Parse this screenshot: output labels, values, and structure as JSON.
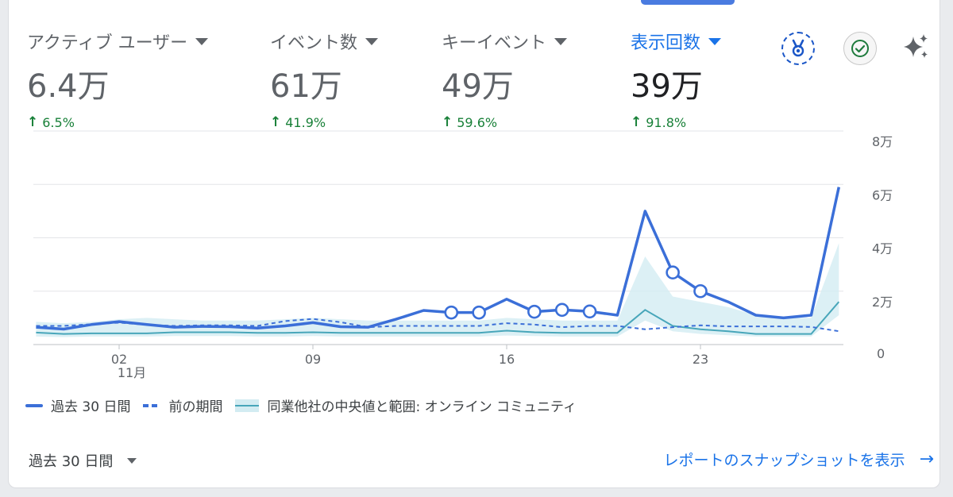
{
  "metrics": [
    {
      "label": "アクティブ ユーザー",
      "value": "6.4万",
      "change": "6.5%",
      "active": false
    },
    {
      "label": "イベント数",
      "value": "61万",
      "change": "41.9%",
      "active": false
    },
    {
      "label": "キーイベント",
      "value": "49万",
      "change": "59.6%",
      "active": false
    },
    {
      "label": "表示回数",
      "value": "39万",
      "change": "91.8%",
      "active": true
    }
  ],
  "icons": {
    "badge": "ribbon-badge-icon",
    "check": "check-circle-icon",
    "sparkle": "sparkle-icon"
  },
  "colors": {
    "accent": "#1a73e8",
    "current_series": "#3b6fd8",
    "benchmark": "#48a6ba",
    "benchmark_band": "#d3ecf2",
    "positive": "#188038"
  },
  "chart_data": {
    "type": "line",
    "y_ticks": [
      "8万",
      "6万",
      "4万",
      "2万",
      "0"
    ],
    "ylim": [
      0,
      80000
    ],
    "x_tick_labels": [
      {
        "day": 2,
        "label": "02",
        "sublabel": "11月"
      },
      {
        "day": 9,
        "label": "09",
        "sublabel": ""
      },
      {
        "day": 16,
        "label": "16",
        "sublabel": ""
      },
      {
        "day": 23,
        "label": "23",
        "sublabel": ""
      }
    ],
    "x_days": [
      -1,
      0,
      1,
      2,
      3,
      4,
      5,
      6,
      7,
      8,
      9,
      10,
      11,
      12,
      13,
      14,
      15,
      16,
      17,
      18,
      19,
      20,
      21,
      22,
      23,
      24,
      25,
      26,
      27,
      28
    ],
    "series": [
      {
        "name": "過去 30 日間",
        "style": "solid",
        "values": [
          6500,
          5800,
          7500,
          8600,
          7500,
          6500,
          6800,
          6700,
          6200,
          7000,
          8200,
          6700,
          6500,
          9500,
          12800,
          12000,
          12000,
          17000,
          12300,
          13000,
          12400,
          11000,
          50000,
          27000,
          20000,
          16000,
          11000,
          10000,
          11000,
          59000
        ],
        "anomaly_markers": [
          14,
          15,
          17,
          18,
          19,
          22,
          23
        ]
      },
      {
        "name": "前の期間",
        "style": "dashed",
        "values": [
          7000,
          7000,
          7600,
          8200,
          7400,
          7000,
          7200,
          7200,
          7000,
          8800,
          9600,
          8400,
          6500,
          7000,
          7000,
          7000,
          7000,
          8000,
          7500,
          6500,
          7000,
          7000,
          5700,
          6500,
          7200,
          6800,
          6800,
          6800,
          6600,
          5000
        ]
      },
      {
        "name": "同業他社の中央値と範囲: オンライン コミュニティ",
        "style": "band",
        "values": [
          4500,
          4000,
          4200,
          4200,
          4200,
          4600,
          4600,
          4600,
          4400,
          4400,
          4600,
          4400,
          4400,
          4400,
          4400,
          4400,
          4400,
          5200,
          4600,
          4400,
          4400,
          4400,
          13000,
          7000,
          5700,
          5000,
          4000,
          4000,
          4000,
          16000
        ],
        "upper": [
          8500,
          8000,
          8500,
          9500,
          10000,
          9500,
          9000,
          9000,
          9000,
          9500,
          10000,
          9500,
          9000,
          9000,
          9000,
          9000,
          9000,
          10000,
          9500,
          9000,
          9000,
          9000,
          33000,
          18000,
          16000,
          14000,
          11000,
          10000,
          10000,
          38000
        ],
        "lower": [
          3000,
          2800,
          3000,
          3000,
          3000,
          3200,
          3200,
          3200,
          3000,
          3000,
          3200,
          3000,
          3000,
          3000,
          3000,
          3000,
          3000,
          3400,
          3200,
          3000,
          3000,
          3000,
          9000,
          5000,
          4000,
          3500,
          3000,
          3000,
          3000,
          11000
        ]
      }
    ]
  },
  "legend": [
    {
      "label": "過去 30 日間",
      "type": "solid"
    },
    {
      "label": "前の期間",
      "type": "dash"
    },
    {
      "label": "同業他社の中央値と範囲: オンライン コミュニティ",
      "type": "band"
    }
  ],
  "footer": {
    "range_label": "過去 30 日間",
    "link_label": "レポートのスナップショットを表示"
  }
}
